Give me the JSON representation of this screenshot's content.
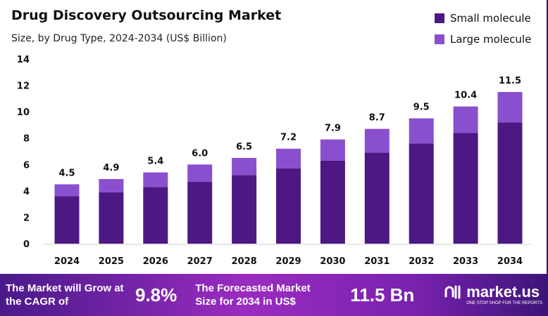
{
  "chart_data": {
    "type": "bar",
    "stacked": true,
    "title": "Drug Discovery Outsourcing Market",
    "subtitle": "Size, by Drug Type, 2024-2034 (US$ Billion)",
    "categories": [
      "2024",
      "2025",
      "2026",
      "2027",
      "2028",
      "2029",
      "2030",
      "2031",
      "2032",
      "2033",
      "2034"
    ],
    "series": [
      {
        "name": "Small molecule",
        "color": "#4d1784",
        "values": [
          3.6,
          3.9,
          4.3,
          4.7,
          5.2,
          5.7,
          6.3,
          6.9,
          7.6,
          8.4,
          9.2
        ]
      },
      {
        "name": "Large molecule",
        "color": "#8a4fcf",
        "values": [
          0.9,
          1.0,
          1.1,
          1.3,
          1.3,
          1.5,
          1.6,
          1.8,
          1.9,
          2.0,
          2.3
        ]
      }
    ],
    "totals": [
      "4.5",
      "4.9",
      "5.4",
      "6.0",
      "6.5",
      "7.2",
      "7.9",
      "8.7",
      "9.5",
      "10.4",
      "11.5"
    ],
    "ylim": [
      0,
      14
    ],
    "yticks": [
      0,
      2,
      4,
      6,
      8,
      10,
      12,
      14
    ],
    "grid": false,
    "legend": "top-right"
  },
  "footer": {
    "cagr_text": "The Market will Grow at the CAGR of",
    "cagr_value": "9.8%",
    "forecast_text": "The Forecasted Market Size for 2034 in US$",
    "forecast_value": "11.5 Bn",
    "brand": "market.us",
    "tagline": "ONE STOP SHOP FOR THE REPORTS"
  }
}
